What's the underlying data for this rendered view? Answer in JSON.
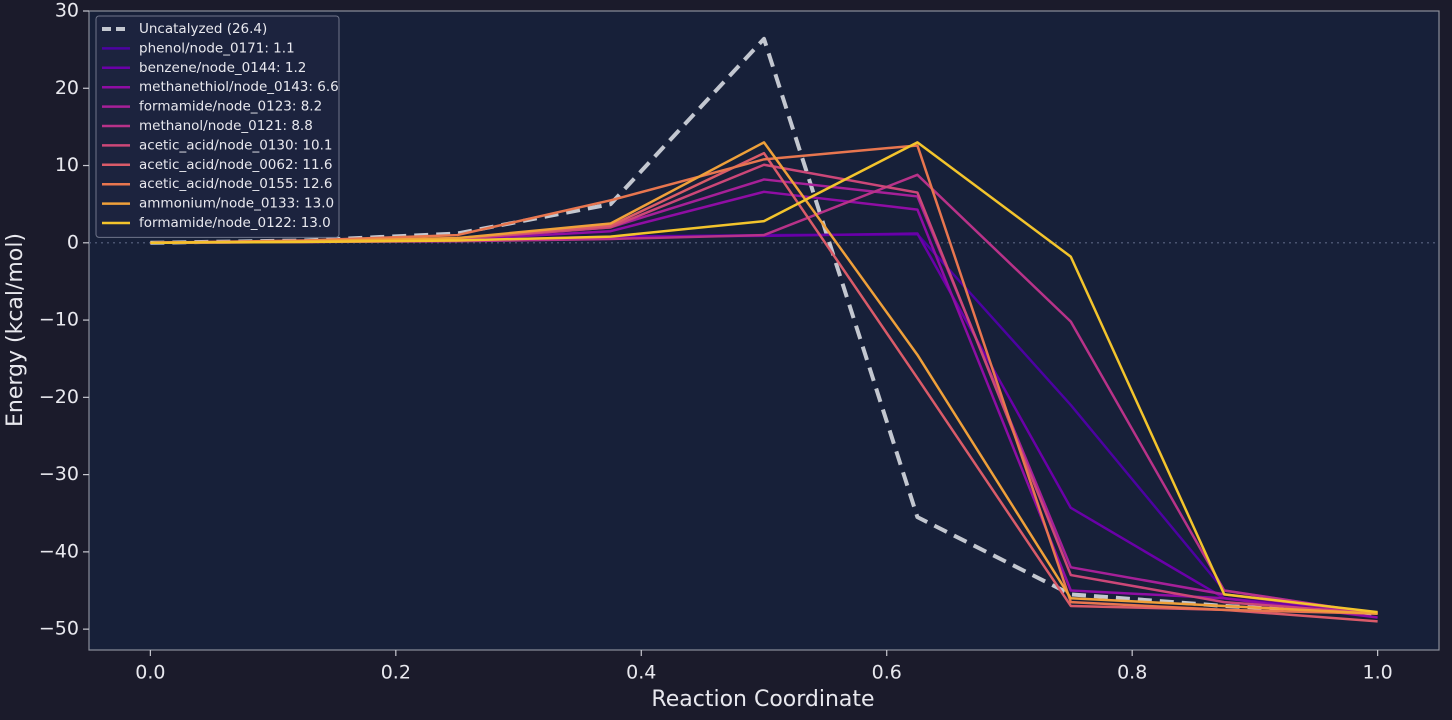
{
  "chart_data": {
    "type": "line",
    "x_label": "Reaction Coordinate",
    "y_label": "Energy (kcal/mol)",
    "x": [
      0,
      0.125,
      0.25,
      0.375,
      0.5,
      0.625,
      0.75,
      0.875,
      1.0
    ],
    "xlim": [
      -0.05,
      1.05
    ],
    "ylim": [
      -52.7,
      30
    ],
    "xticks": [
      {
        "value": 0,
        "label": "0.0"
      },
      {
        "value": 0.2,
        "label": "0.2"
      },
      {
        "value": 0.4,
        "label": "0.4"
      },
      {
        "value": 0.6,
        "label": "0.6"
      },
      {
        "value": 0.8,
        "label": "0.8"
      },
      {
        "value": 1,
        "label": "1.0"
      }
    ],
    "yticks": [
      30,
      20,
      10,
      0,
      {
        "value": -10,
        "label": "−10"
      },
      {
        "value": -20,
        "label": "−20"
      },
      {
        "value": -30,
        "label": "−30"
      },
      {
        "value": -40,
        "label": "−40"
      },
      {
        "value": -50,
        "label": "−50"
      }
    ],
    "reference_line": 0,
    "legend_position": "upper left",
    "series": [
      {
        "name": "Uncatalyzed (26.4)",
        "color": "#c3c7d0",
        "dashed": true,
        "values": [
          0,
          0.3,
          1.2,
          5,
          26.4,
          -35.5,
          -45.5,
          -47,
          -48
        ]
      },
      {
        "name": "phenol/node_0171: 1.1",
        "color": "#4c02a1",
        "values": [
          0,
          0.1,
          0.3,
          0.8,
          1.0,
          1.1,
          -21,
          -45,
          -48
        ]
      },
      {
        "name": "benzene/node_0144: 1.2",
        "color": "#6a00a8",
        "values": [
          0,
          0.1,
          0.3,
          0.8,
          0.9,
          1.2,
          -34.3,
          -46,
          -48
        ]
      },
      {
        "name": "methanethiol/node_0143: 6.6",
        "color": "#8f0da4",
        "values": [
          0,
          0.1,
          0.4,
          1.5,
          6.6,
          4.3,
          -45,
          -46,
          -48.5
        ]
      },
      {
        "name": "formamide/node_0123: 8.2",
        "color": "#a62098",
        "values": [
          0,
          0.2,
          0.5,
          2,
          8.2,
          6,
          -42,
          -45.5,
          -48
        ]
      },
      {
        "name": "methanol/node_0121: 8.8",
        "color": "#b83289",
        "values": [
          0,
          0.1,
          0.2,
          0.5,
          1.0,
          8.8,
          -10.2,
          -45,
          -48
        ]
      },
      {
        "name": "acetic_acid/node_0130: 10.1",
        "color": "#cc4778",
        "values": [
          0,
          0.2,
          0.5,
          2,
          10.1,
          6.5,
          -43,
          -46.5,
          -48
        ]
      },
      {
        "name": "acetic_acid/node_0062: 11.6",
        "color": "#da5b69",
        "values": [
          0,
          0.2,
          0.6,
          2.2,
          11.6,
          -17.5,
          -47,
          -47.5,
          -49
        ]
      },
      {
        "name": "acetic_acid/node_0155: 12.6",
        "color": "#e8764f",
        "values": [
          0,
          0.3,
          1,
          5.5,
          10.8,
          12.6,
          -46.5,
          -47.5,
          -48
        ]
      },
      {
        "name": "ammonium/node_0133: 13.0",
        "color": "#efa03a",
        "values": [
          0,
          0.2,
          0.6,
          2.5,
          13,
          -14.5,
          -46,
          -47,
          -48
        ]
      },
      {
        "name": "formamide/node_0122: 13.0",
        "color": "#f3c42c",
        "values": [
          0,
          0.1,
          0.3,
          0.8,
          2.8,
          13,
          -1.8,
          -45.5,
          -47.8
        ]
      }
    ]
  }
}
